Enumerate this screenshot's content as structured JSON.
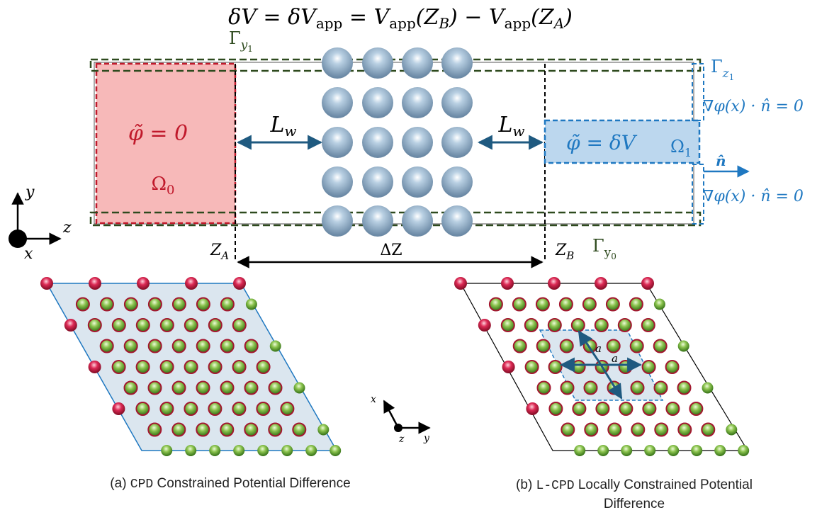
{
  "equation": {
    "parts": [
      "δV = δV",
      "app",
      " = V",
      "app",
      "(Z",
      "B",
      ") − V",
      "app",
      "(Z",
      "A",
      ")"
    ]
  },
  "top_panel": {
    "gamma_y1": {
      "base": "Γ",
      "sub": "y",
      "subsub": "1"
    },
    "gamma_y0": {
      "base": "Γ",
      "sub": "y",
      "subsub": "0"
    },
    "gamma_z1": {
      "base": "Γ",
      "sub": "z",
      "subsub": "1"
    },
    "phi_zero": "φ̃ = 0",
    "omega0": {
      "base": "Ω",
      "sub": "0"
    },
    "omega1": {
      "base": "Ω",
      "sub": "1"
    },
    "phi_dv": "φ̃ = δV",
    "lw": {
      "base": "L",
      "sub": "w"
    },
    "neumann": "∇φ(x) · n̂ = 0",
    "n_hat": "n̂",
    "za": {
      "base": "Z",
      "sub": "A"
    },
    "zb": {
      "base": "Z",
      "sub": "B"
    },
    "dz": "ΔZ",
    "axis_y": "y",
    "axis_z": "z",
    "axis_x": "x"
  },
  "bottom_axes": {
    "x": "x",
    "y": "y",
    "z": "z"
  },
  "lattice_b": {
    "a1": "a",
    "a2": "a"
  },
  "captions": {
    "a": {
      "prefix": "(a) ",
      "code": "CPD",
      "text": "  Constrained Potential Difference"
    },
    "b": {
      "prefix": "(b) ",
      "code": "L-CPD",
      "text": "  Locally Constrained Potential",
      "line2": "Difference"
    }
  },
  "colors": {
    "red_region": "#f7b9b9",
    "red_border": "#c0192b",
    "blue_region": "#bcd7ee",
    "blue_border": "#1f78c1",
    "dark_green": "#2e4a1e",
    "arrow": "#1f5a80",
    "atom_red": "#d11e48",
    "atom_green": "#6fae3a",
    "cell_fill": "#dbe6ef"
  }
}
